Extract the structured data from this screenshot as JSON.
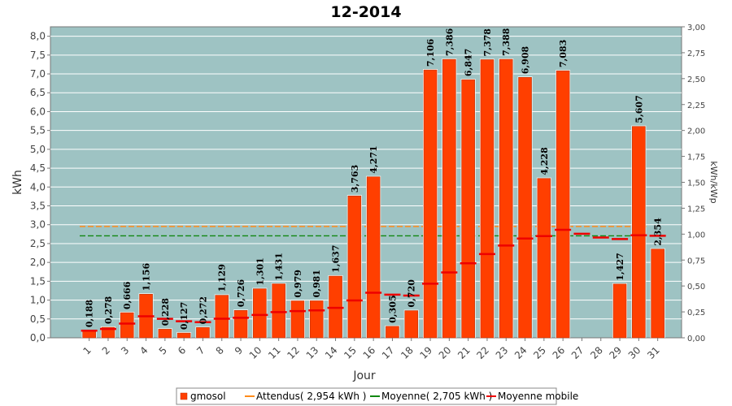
{
  "chart_data": {
    "type": "bar",
    "title": "12-2014",
    "xlabel": "Jour",
    "ylabel": "kWh",
    "y2label": "kWh/kWp",
    "ylim": [
      0,
      8.25
    ],
    "y2lim": [
      0,
      3.0
    ],
    "y_ticks": [
      "0,0",
      "0,5",
      "1,0",
      "1,5",
      "2,0",
      "2,5",
      "3,0",
      "3,5",
      "4,0",
      "4,5",
      "5,0",
      "5,5",
      "6,0",
      "6,5",
      "7,0",
      "7,5",
      "8,0"
    ],
    "y2_ticks": [
      "0,00",
      "0,25",
      "0,50",
      "0,75",
      "1,00",
      "1,25",
      "1,50",
      "1,75",
      "2,00",
      "2,25",
      "2,50",
      "2,75",
      "3,00"
    ],
    "grid": true,
    "categories": [
      "1",
      "2",
      "3",
      "4",
      "5",
      "6",
      "7",
      "8",
      "9",
      "10",
      "11",
      "12",
      "13",
      "14",
      "15",
      "16",
      "17",
      "18",
      "19",
      "20",
      "21",
      "22",
      "23",
      "24",
      "25",
      "26",
      "27",
      "28",
      "29",
      "30",
      "31"
    ],
    "series": [
      {
        "name": "gmosol",
        "color": "#ff3f00",
        "values": [
          0.188,
          0.278,
          0.666,
          1.156,
          0.228,
          0.127,
          0.272,
          1.129,
          0.726,
          1.301,
          1.431,
          0.979,
          0.981,
          1.637,
          3.763,
          4.271,
          0.305,
          0.72,
          7.106,
          7.386,
          6.847,
          7.378,
          7.388,
          6.908,
          4.228,
          7.083,
          null,
          null,
          1.427,
          5.607,
          2.354
        ],
        "labels": [
          "0,188",
          "0,278",
          "0,666",
          "1,156",
          "0,228",
          "0,127",
          "0,272",
          "1,129",
          "0,726",
          "1,301",
          "1,431",
          "0,979",
          "0,981",
          "1,637",
          "3,763",
          "4,271",
          "0,305",
          "0,720",
          "7,106",
          "7,386",
          "6,847",
          "7,378",
          "7,388",
          "6,908",
          "4,228",
          "7,083",
          "",
          "",
          "1,427",
          "5,607",
          "2,354"
        ]
      },
      {
        "name": "Attendus( 2,954 kWh )",
        "color": "#ff8c1a",
        "style": "dashed",
        "constant": 2.954
      },
      {
        "name": "Moyenne( 2,705 kWh )",
        "color": "#118811",
        "style": "dashed",
        "constant": 2.705
      },
      {
        "name": "Moyenne mobile",
        "color": "#ee0000",
        "values": [
          0.188,
          0.233,
          0.377,
          0.572,
          0.503,
          0.44,
          0.416,
          0.505,
          0.53,
          0.607,
          0.682,
          0.707,
          0.728,
          0.793,
          0.991,
          1.196,
          1.144,
          1.12,
          1.435,
          1.733,
          1.976,
          2.222,
          2.447,
          2.633,
          2.697,
          2.866,
          2.76,
          2.66,
          2.62,
          2.72,
          2.705
        ]
      }
    ],
    "legend": "bottom",
    "background": "#9ec3c3"
  }
}
